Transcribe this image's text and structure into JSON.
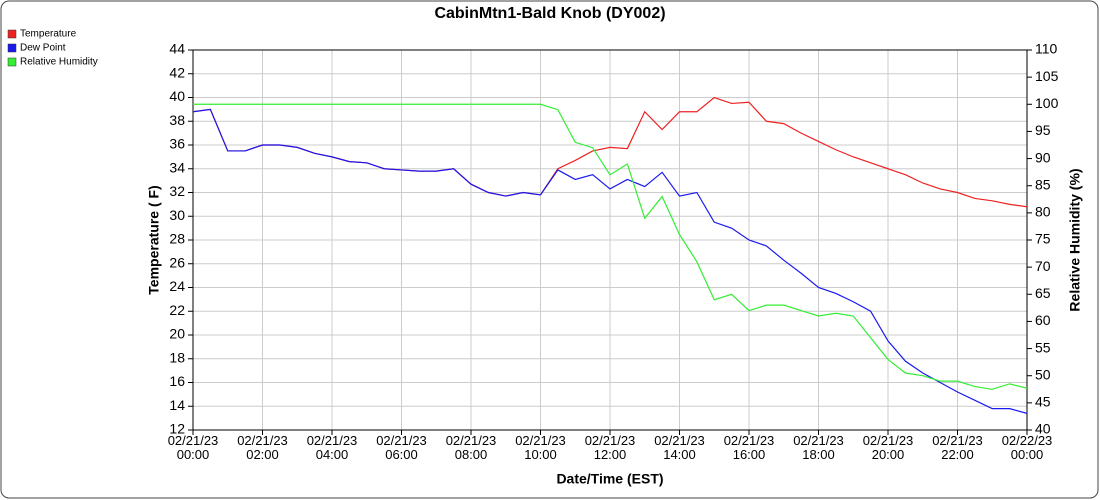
{
  "chart_data": {
    "type": "line",
    "title": "CabinMtn1-Bald Knob (DY002)",
    "x_label": "Date/Time (EST)",
    "y_label": "Temperature ( F)",
    "y2_label": "Relative Humidity (%)",
    "x": [
      0,
      0.5,
      1,
      1.5,
      2,
      2.5,
      3,
      3.5,
      4,
      4.5,
      5,
      5.5,
      6,
      6.5,
      7,
      7.5,
      8,
      8.5,
      9,
      9.5,
      10,
      10.5,
      11,
      11.5,
      12,
      12.5,
      13,
      13.5,
      14,
      14.5,
      15,
      15.5,
      16,
      16.5,
      17,
      17.5,
      18,
      18.5,
      19,
      19.5,
      20,
      20.5,
      21,
      21.5,
      22,
      22.5,
      23,
      23.5,
      24
    ],
    "series": [
      {
        "name": "Temperature",
        "color": "#ee2222",
        "values": [
          38.8,
          39.0,
          35.5,
          35.5,
          36.0,
          36.0,
          35.8,
          35.3,
          35.0,
          34.6,
          34.5,
          34.0,
          33.9,
          33.8,
          33.8,
          34.0,
          32.7,
          32.0,
          31.7,
          32.0,
          31.8,
          34.0,
          34.7,
          35.5,
          35.8,
          35.7,
          38.8,
          37.3,
          38.8,
          38.8,
          40.0,
          39.5,
          39.6,
          38.0,
          37.8,
          37.0,
          36.3,
          35.6,
          35.0,
          34.5,
          34.0,
          33.5,
          32.8,
          32.3,
          32.0,
          31.5,
          31.3,
          31.0,
          30.8
        ]
      },
      {
        "name": "Dew Point",
        "color": "#1a1aee",
        "values": [
          38.8,
          39.0,
          35.5,
          35.5,
          36.0,
          36.0,
          35.8,
          35.3,
          35.0,
          34.6,
          34.5,
          34.0,
          33.9,
          33.8,
          33.8,
          34.0,
          32.7,
          32.0,
          31.7,
          32.0,
          31.8,
          33.9,
          33.1,
          33.5,
          32.3,
          33.1,
          32.5,
          33.7,
          31.7,
          32.0,
          29.5,
          29.0,
          28.0,
          27.5,
          26.3,
          25.2,
          24.0,
          23.5,
          22.8,
          22.0,
          19.5,
          17.8,
          16.8,
          16.0,
          15.2,
          14.5,
          13.8,
          13.8,
          13.4
        ]
      },
      {
        "name": "Relative Humidity",
        "color": "#33ee33",
        "axis": "y2",
        "values": [
          100,
          100,
          100,
          100,
          100,
          100,
          100,
          100,
          100,
          100,
          100,
          100,
          100,
          100,
          100,
          100,
          100,
          100,
          100,
          100,
          100,
          99,
          93,
          92,
          87,
          89,
          79,
          83,
          76,
          71,
          64,
          65,
          62,
          63,
          63,
          62,
          61,
          61.5,
          61,
          57,
          53,
          50.5,
          50,
          49,
          49,
          48,
          47.5,
          48.5,
          47.7
        ]
      }
    ],
    "xlim": [
      0,
      24
    ],
    "xticks": [
      {
        "value": 0,
        "label": "02/21/23 00:00"
      },
      {
        "value": 2,
        "label": "02/21/23 02:00"
      },
      {
        "value": 4,
        "label": "02/21/23 04:00"
      },
      {
        "value": 6,
        "label": "02/21/23 06:00"
      },
      {
        "value": 8,
        "label": "02/21/23 08:00"
      },
      {
        "value": 10,
        "label": "02/21/23 10:00"
      },
      {
        "value": 12,
        "label": "02/21/23 12:00"
      },
      {
        "value": 14,
        "label": "02/21/23 14:00"
      },
      {
        "value": 16,
        "label": "02/21/23 16:00"
      },
      {
        "value": 18,
        "label": "02/21/23 18:00"
      },
      {
        "value": 20,
        "label": "02/21/23 20:00"
      },
      {
        "value": 22,
        "label": "02/21/23 22:00"
      },
      {
        "value": 24,
        "label": "02/22/23 00:00"
      }
    ],
    "ylim": [
      12,
      44
    ],
    "yticks": [
      12,
      14,
      16,
      18,
      20,
      22,
      24,
      26,
      28,
      30,
      32,
      34,
      36,
      38,
      40,
      42,
      44
    ],
    "y2lim": [
      40,
      110
    ],
    "y2ticks": [
      40,
      45,
      50,
      55,
      60,
      65,
      70,
      75,
      80,
      85,
      90,
      95,
      100,
      105,
      110
    ],
    "grid": true
  }
}
